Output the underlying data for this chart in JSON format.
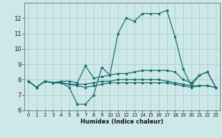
{
  "xlabel": "Humidex (Indice chaleur)",
  "bg_color": "#cce8e8",
  "grid_color": "#b0cccc",
  "line_color": "#1a6b6b",
  "xlim": [
    -0.5,
    23.5
  ],
  "ylim": [
    6,
    13
  ],
  "yticks": [
    6,
    7,
    8,
    9,
    10,
    11,
    12
  ],
  "xticks": [
    0,
    1,
    2,
    3,
    4,
    5,
    6,
    7,
    8,
    9,
    10,
    11,
    12,
    13,
    14,
    15,
    16,
    17,
    18,
    19,
    20,
    21,
    22,
    23
  ],
  "curve1_x": [
    0,
    1,
    2,
    3,
    4,
    5,
    6,
    7,
    8,
    9,
    10,
    11,
    12,
    13,
    14,
    15,
    16,
    17,
    18,
    19,
    20,
    21,
    22,
    23
  ],
  "curve1_y": [
    7.9,
    7.5,
    7.9,
    7.8,
    7.8,
    7.5,
    6.4,
    6.4,
    7.0,
    8.8,
    8.3,
    11.0,
    12.0,
    11.8,
    12.3,
    12.3,
    12.3,
    12.5,
    10.8,
    8.7,
    7.6,
    8.3,
    8.5,
    7.5
  ],
  "curve2_x": [
    0,
    1,
    2,
    3,
    4,
    5,
    6,
    7,
    8,
    9,
    10,
    11,
    12,
    13,
    14,
    15,
    16,
    17,
    18,
    19,
    20,
    21,
    22,
    23
  ],
  "curve2_y": [
    7.9,
    7.5,
    7.9,
    7.8,
    7.9,
    7.9,
    7.8,
    8.9,
    8.1,
    8.2,
    8.3,
    8.4,
    8.4,
    8.5,
    8.6,
    8.6,
    8.6,
    8.6,
    8.5,
    8.0,
    7.8,
    8.3,
    8.5,
    7.5
  ],
  "curve3_x": [
    0,
    1,
    2,
    3,
    4,
    5,
    6,
    7,
    8,
    9,
    10,
    11,
    12,
    13,
    14,
    15,
    16,
    17,
    18,
    19,
    20,
    21,
    22,
    23
  ],
  "curve3_y": [
    7.9,
    7.5,
    7.9,
    7.8,
    7.8,
    7.7,
    7.7,
    7.7,
    7.8,
    7.9,
    7.9,
    8.0,
    8.0,
    8.0,
    8.0,
    8.0,
    8.0,
    7.9,
    7.8,
    7.7,
    7.6,
    7.6,
    7.6,
    7.5
  ],
  "curve4_x": [
    0,
    1,
    2,
    3,
    4,
    5,
    6,
    7,
    8,
    9,
    10,
    11,
    12,
    13,
    14,
    15,
    16,
    17,
    18,
    19,
    20,
    21,
    22,
    23
  ],
  "curve4_y": [
    7.9,
    7.5,
    7.9,
    7.8,
    7.8,
    7.7,
    7.6,
    7.5,
    7.6,
    7.7,
    7.8,
    7.8,
    7.8,
    7.8,
    7.8,
    7.8,
    7.8,
    7.8,
    7.7,
    7.6,
    7.5,
    7.6,
    7.6,
    7.5
  ]
}
